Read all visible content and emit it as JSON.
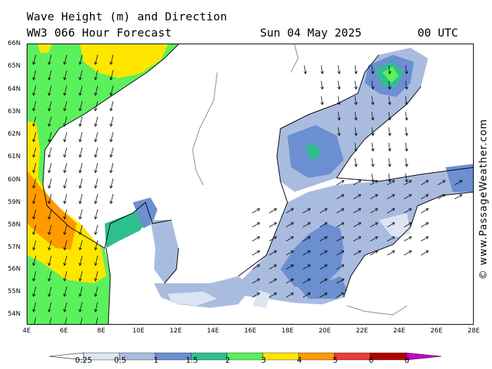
{
  "header": {
    "title": "Wave Height (m) and Direction",
    "subtitle": "WW3 066 Hour Forecast",
    "date": "Sun 04 May 2025",
    "time": "00 UTC"
  },
  "watermark": "© www.PassageWeather.com",
  "axes": {
    "lat_labels": [
      "66N",
      "65N",
      "64N",
      "63N",
      "62N",
      "61N",
      "60N",
      "59N",
      "58N",
      "57N",
      "56N",
      "55N",
      "54N"
    ],
    "lon_labels": [
      "4E",
      "6E",
      "8E",
      "10E",
      "12E",
      "14E",
      "16E",
      "18E",
      "20E",
      "22E",
      "24E",
      "26E",
      "28E"
    ]
  },
  "legend": {
    "labels": [
      "0.25",
      "0.5",
      "1",
      "1.5",
      "2",
      "3",
      "4",
      "5",
      "6",
      "8"
    ],
    "colors": [
      "#ffffff",
      "#dde4f2",
      "#a9bce0",
      "#6b8fd0",
      "#2fbf8f",
      "#5cf05c",
      "#ffe600",
      "#ff9a00",
      "#ee3a3a",
      "#b30000",
      "#cc00cc"
    ]
  },
  "colors": {
    "land": "#ffffff",
    "water_low": "#dde4f2",
    "coast": "#000000",
    "border": "#888888"
  },
  "map": {
    "region": "North Sea / Baltic Sea",
    "lon_range": [
      4,
      28
    ],
    "lat_range": [
      53.6,
      66
    ],
    "arrow_dir": "southward in North Sea, northeast in Baltic"
  }
}
